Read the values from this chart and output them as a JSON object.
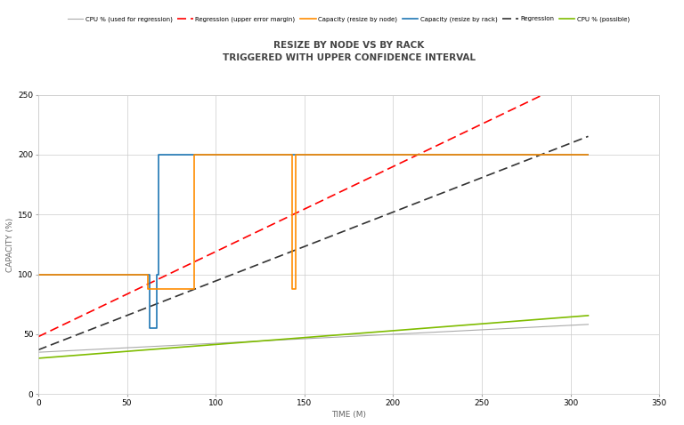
{
  "title_line1": "RESIZE BY NODE VS BY RACK",
  "title_line2": "TRIGGERED WITH UPPER CONFIDENCE INTERVAL",
  "xlabel": "TIME (M)",
  "ylabel": "CAPACITY (%)",
  "xlim": [
    0,
    350
  ],
  "ylim": [
    0,
    250
  ],
  "xticks": [
    0,
    50,
    100,
    150,
    200,
    250,
    300,
    350
  ],
  "yticks": [
    0,
    50,
    100,
    150,
    200,
    250
  ],
  "bg_color": "#ffffff",
  "grid_color": "#cccccc",
  "cpu_regression_color": "#aaaaaa",
  "regression_upper_color": "#ff0000",
  "capacity_node_color": "#ff8c00",
  "capacity_rack_color": "#1f77b4",
  "regression_color": "#333333",
  "cpu_possible_color": "#7fbc00",
  "legend_labels": [
    "CPU % (used for regression)",
    "Regression (upper error margin)",
    "Capacity (resize by node)",
    "Capacity (resize by rack)",
    "Regression",
    "CPU % (possible)"
  ],
  "cpu_reg_start": 35,
  "cpu_reg_slope": 0.075,
  "reg_upper_start": 48,
  "reg_upper_slope": 0.71,
  "reg_start": 37,
  "reg_slope": 0.575,
  "cpu_poss_start": 30,
  "cpu_poss_slope": 0.115,
  "t_rack": [
    0,
    63,
    63,
    67,
    67,
    68,
    68,
    75,
    75,
    310
  ],
  "v_rack": [
    100,
    100,
    55,
    55,
    100,
    100,
    200,
    200,
    200,
    200
  ],
  "t_node": [
    0,
    62,
    62,
    88,
    88,
    143,
    143,
    145,
    145,
    310
  ],
  "v_node": [
    100,
    100,
    88,
    88,
    200,
    200,
    88,
    88,
    200,
    200
  ]
}
